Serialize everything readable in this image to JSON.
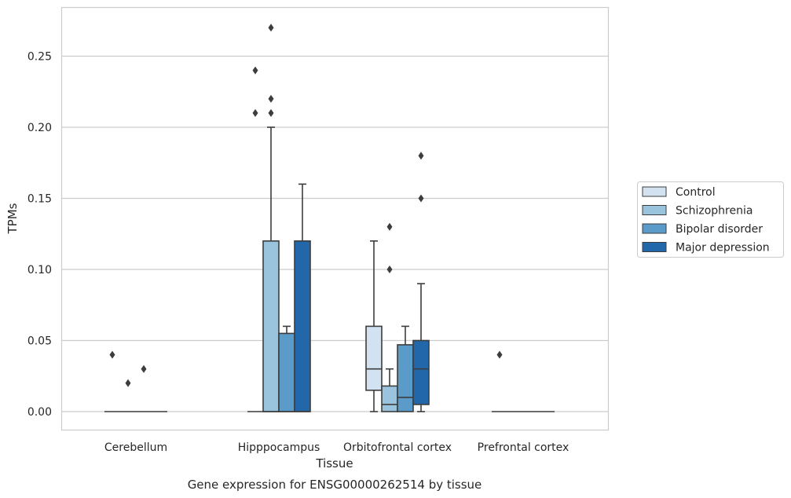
{
  "chart_data": {
    "type": "boxplot",
    "title": "",
    "caption": "Gene expression for ENSG00000262514 by tissue",
    "xlabel": "Tissue",
    "ylabel": "TPMs",
    "ylim": [
      -0.013,
      0.283
    ],
    "yticks": [
      "0.00",
      "0.05",
      "0.10",
      "0.15",
      "0.20",
      "0.25"
    ],
    "grid": "horizontal",
    "legend_position": "outside-right",
    "categories": [
      "Cerebellum",
      "Hipppocampus",
      "Orbitofrontal cortex",
      "Prefrontal cortex"
    ],
    "series": [
      {
        "name": "Control",
        "color": "#d3e2f0",
        "boxes": [
          {
            "category": "Cerebellum",
            "q1": 0,
            "median": 0,
            "q3": 0,
            "whisker_low": 0,
            "whisker_high": 0,
            "outliers": [
              0.04
            ]
          },
          {
            "category": "Hipppocampus",
            "q1": 0,
            "median": 0,
            "q3": 0,
            "whisker_low": 0,
            "whisker_high": 0,
            "outliers": [
              0.21,
              0.24
            ]
          },
          {
            "category": "Orbitofrontal cortex",
            "q1": 0.015,
            "median": 0.03,
            "q3": 0.06,
            "whisker_low": 0,
            "whisker_high": 0.12,
            "outliers": []
          },
          {
            "category": "Prefrontal cortex",
            "q1": 0,
            "median": 0,
            "q3": 0,
            "whisker_low": 0,
            "whisker_high": 0,
            "outliers": [
              0.04
            ]
          }
        ]
      },
      {
        "name": "Schizophrenia",
        "color": "#9ac3dd",
        "boxes": [
          {
            "category": "Cerebellum",
            "q1": 0,
            "median": 0,
            "q3": 0,
            "whisker_low": 0,
            "whisker_high": 0,
            "outliers": [
              0.02
            ]
          },
          {
            "category": "Hipppocampus",
            "q1": 0,
            "median": 0,
            "q3": 0.12,
            "whisker_low": 0,
            "whisker_high": 0.2,
            "outliers": [
              0.22,
              0.21,
              0.27
            ]
          },
          {
            "category": "Orbitofrontal cortex",
            "q1": 0,
            "median": 0.005,
            "q3": 0.018,
            "whisker_low": 0,
            "whisker_high": 0.03,
            "outliers": [
              0.1,
              0.13
            ]
          },
          {
            "category": "Prefrontal cortex",
            "q1": 0,
            "median": 0,
            "q3": 0,
            "whisker_low": 0,
            "whisker_high": 0,
            "outliers": []
          }
        ]
      },
      {
        "name": "Bipolar disorder",
        "color": "#5a9bc9",
        "boxes": [
          {
            "category": "Cerebellum",
            "q1": 0,
            "median": 0,
            "q3": 0,
            "whisker_low": 0,
            "whisker_high": 0,
            "outliers": [
              0.03
            ]
          },
          {
            "category": "Hipppocampus",
            "q1": 0,
            "median": 0,
            "q3": 0.055,
            "whisker_low": 0,
            "whisker_high": 0.06,
            "outliers": []
          },
          {
            "category": "Orbitofrontal cortex",
            "q1": 0,
            "median": 0.01,
            "q3": 0.047,
            "whisker_low": 0,
            "whisker_high": 0.06,
            "outliers": []
          },
          {
            "category": "Prefrontal cortex",
            "q1": 0,
            "median": 0,
            "q3": 0,
            "whisker_low": 0,
            "whisker_high": 0,
            "outliers": []
          }
        ]
      },
      {
        "name": "Major depression",
        "color": "#2367ab",
        "boxes": [
          {
            "category": "Cerebellum",
            "q1": 0,
            "median": 0,
            "q3": 0,
            "whisker_low": 0,
            "whisker_high": 0,
            "outliers": []
          },
          {
            "category": "Hipppocampus",
            "q1": 0,
            "median": 0,
            "q3": 0.12,
            "whisker_low": 0,
            "whisker_high": 0.16,
            "outliers": []
          },
          {
            "category": "Orbitofrontal cortex",
            "q1": 0.005,
            "median": 0.03,
            "q3": 0.05,
            "whisker_low": 0,
            "whisker_high": 0.09,
            "outliers": [
              0.15,
              0.18
            ]
          },
          {
            "category": "Prefrontal cortex",
            "q1": 0,
            "median": 0,
            "q3": 0,
            "whisker_low": 0,
            "whisker_high": 0,
            "outliers": []
          }
        ]
      }
    ]
  }
}
